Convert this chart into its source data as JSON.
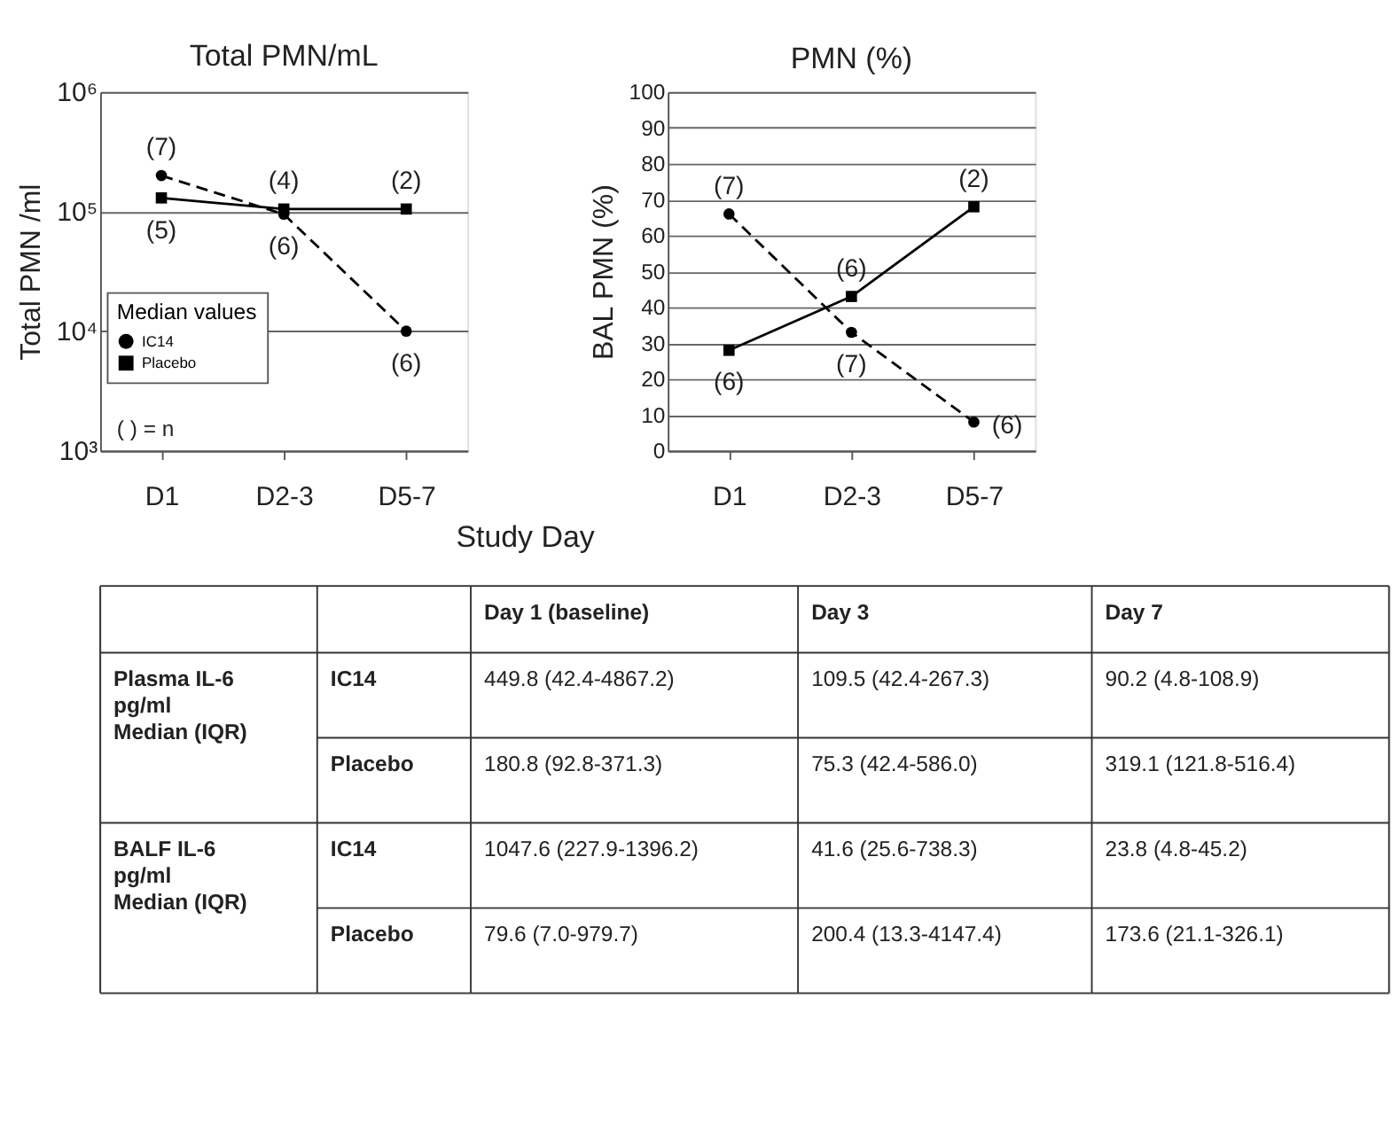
{
  "chart_data": [
    {
      "type": "line",
      "title": "Total PMN/mL",
      "ylabel": "Total PMN /ml",
      "xlabel": "Study Day",
      "categories": [
        "D1",
        "D2-3",
        "D5-7"
      ],
      "log": "y",
      "ylim": [
        1000,
        1000000
      ],
      "yticks": [
        {
          "value": 1000,
          "label": "10³"
        },
        {
          "value": 10000,
          "label": "10⁴"
        },
        {
          "value": 100000,
          "label": "10⁵"
        },
        {
          "value": 1000000,
          "label": "10⁶"
        }
      ],
      "grid": "y",
      "legend": "bottom left",
      "legend_title": "Median values",
      "series": [
        {
          "name": "IC14",
          "color": "#000000",
          "values": [
            200000,
            95000,
            10000
          ],
          "marker": "circle",
          "line_style": "dashed"
        },
        {
          "name": "Placebo",
          "color": "#000000",
          "values": [
            130000,
            105000,
            105000
          ],
          "marker": "square",
          "line_style": "solid"
        }
      ],
      "annotations": [
        {
          "text": "(7)",
          "x": "D1",
          "y": 200000
        },
        {
          "text": "(5)",
          "x": "D1",
          "y": 130000
        },
        {
          "text": "(4)",
          "x": "D2-3",
          "y": 105000
        },
        {
          "text": "(6)",
          "x": "D2-3",
          "y": 95000
        },
        {
          "text": "(2)",
          "x": "D5-7",
          "y": 105000
        },
        {
          "text": "(6)",
          "x": "D5-7",
          "y": 10000
        },
        "( ) = n"
      ]
    },
    {
      "type": "line",
      "title": "PMN (%)",
      "ylabel": "BAL PMN (%)",
      "categories": [
        "D1",
        "D2-3",
        "D5-7"
      ],
      "ylim": [
        0,
        100
      ],
      "yticks": [
        0,
        10,
        20,
        30,
        40,
        50,
        60,
        70,
        80,
        90,
        100
      ],
      "grid": "y",
      "series": [
        {
          "color": "#000000",
          "values": [
            66,
            33,
            8
          ],
          "marker": "circle",
          "line_style": "dashed"
        },
        {
          "color": "#000000",
          "values": [
            28,
            43,
            68
          ],
          "marker": "square",
          "line_style": "solid"
        }
      ],
      "annotations": [
        {
          "text": "(7)",
          "x": "D1",
          "y": 66
        },
        {
          "text": "(6)",
          "x": "D1",
          "y": 28
        },
        {
          "text": "(6)",
          "x": "D2-3",
          "y": 43
        },
        {
          "text": "(7)",
          "x": "D2-3",
          "y": 33
        },
        {
          "text": "(2)",
          "x": "D5-7",
          "y": 68
        },
        {
          "text": "(6)",
          "x": "D5-7",
          "y": 8
        }
      ]
    },
    {
      "type": "other",
      "annotations": [
        "Day 1 (baseline)",
        "Day 3",
        "Day 7",
        "Plasma IL-6\npg/ml\nMedian (IQR)",
        "IC14",
        "449.8 (42.4-4867.2)",
        "109.5 (42.4-267.3)",
        "90.2 (4.8-108.9)",
        "Placebo",
        "180.8 (92.8-371.3)",
        "75.3 (42.4-586.0)",
        "319.1 (121.8-516.4)",
        "BALF IL-6\npg/ml\nMedian (IQR)",
        "IC14",
        "1047.6 (227.9-1396.2)",
        "41.6 (25.6-738.3)",
        "23.8 (4.8-45.2)",
        "Placebo",
        "79.6 (7.0-979.7)",
        "200.4 (13.3-4147.4)",
        "173.6 (21.1-326.1)"
      ]
    }
  ]
}
